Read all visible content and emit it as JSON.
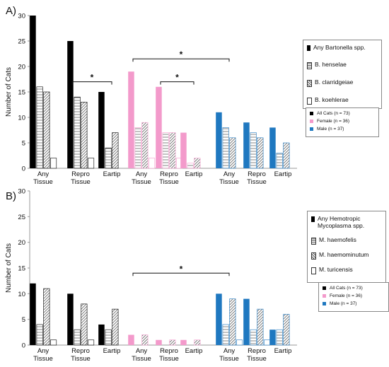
{
  "colors": {
    "all_cats": "#000000",
    "female": "#f39acb",
    "male": "#1f78c0",
    "axis": "#999999"
  },
  "chart_data": [
    {
      "type": "bar",
      "panel_label": "A)",
      "ylabel": "Number of Cats",
      "ylim": [
        0,
        30
      ],
      "yticks": [
        0,
        5,
        10,
        15,
        20,
        25,
        30
      ],
      "groups": [
        {
          "population": "all_cats",
          "categories": [
            "Any\nTissue",
            "Repro\nTissue",
            "Eartip"
          ]
        },
        {
          "population": "female",
          "categories": [
            "Any\nTissue",
            "Repro\nTissue",
            "Eartip"
          ]
        },
        {
          "population": "male",
          "categories": [
            "Any\nTissue",
            "Repro\nTissue",
            "Eartip"
          ]
        }
      ],
      "series": [
        {
          "name": "Any Bartonella spp.",
          "pattern": "solid",
          "values": [
            30,
            25,
            15,
            19,
            16,
            7,
            11,
            9,
            8
          ]
        },
        {
          "name": "B. henselae",
          "pattern": "horizontal",
          "values": [
            16,
            14,
            4,
            8,
            7,
            1,
            8,
            7,
            3
          ]
        },
        {
          "name": "B. clarridgeiae",
          "pattern": "diagonal",
          "values": [
            15,
            13,
            7,
            9,
            7,
            2,
            6,
            6,
            5
          ]
        },
        {
          "name": "B. koehlerae",
          "pattern": "outline",
          "values": [
            2,
            2,
            0,
            2,
            2,
            0,
            0,
            0,
            0
          ]
        }
      ],
      "significance": [
        {
          "from_category": 1,
          "to_category": 2,
          "level": 17,
          "label": "*"
        },
        {
          "from_category": 3,
          "to_category": 6,
          "level": 21.5,
          "label": "*"
        },
        {
          "from_category": 4,
          "to_category": 5,
          "level": 17,
          "label": "*"
        }
      ],
      "legend_species": [
        "Any Bartonella spp.",
        "B. henselae",
        "B. clarridgeiae",
        "B. koehlerae"
      ],
      "legend_population": [
        "All Cats (n = 73)",
        "Female (n = 36)",
        "Male (n = 37)"
      ]
    },
    {
      "type": "bar",
      "panel_label": "B)",
      "ylabel": "Number of Cats",
      "ylim": [
        0,
        30
      ],
      "yticks": [
        0,
        5,
        10,
        15,
        20,
        25,
        30
      ],
      "groups": [
        {
          "population": "all_cats",
          "categories": [
            "Any\nTissue",
            "Repro\nTissue",
            "Eartip"
          ]
        },
        {
          "population": "female",
          "categories": [
            "Any\nTissue",
            "Repro\nTissue",
            "Eartip"
          ]
        },
        {
          "population": "male",
          "categories": [
            "Any\nTissue",
            "Repro\nTissue",
            "Eartip"
          ]
        }
      ],
      "series": [
        {
          "name": "Any Hemotropic Mycoplasma spp.",
          "pattern": "solid",
          "values": [
            12,
            10,
            4,
            2,
            1,
            1,
            10,
            9,
            3
          ]
        },
        {
          "name": "M. haemofelis",
          "pattern": "horizontal",
          "values": [
            4,
            3,
            3,
            0,
            0,
            0,
            4,
            3,
            3
          ]
        },
        {
          "name": "M. haemominutum",
          "pattern": "diagonal",
          "values": [
            11,
            8,
            7,
            2,
            1,
            1,
            9,
            7,
            6
          ]
        },
        {
          "name": "M. turicensis",
          "pattern": "outline",
          "values": [
            1,
            1,
            0,
            0,
            0,
            0,
            1,
            1,
            0
          ]
        }
      ],
      "significance": [
        {
          "from_category": 3,
          "to_category": 6,
          "level": 14,
          "label": "*"
        }
      ],
      "legend_species": [
        "Any Hemotropic\nMycoplasma spp.",
        "M. haemofelis",
        "M. haemominutum",
        "M. turicensis"
      ],
      "legend_population": [
        "All Cats (n = 73)",
        "Female (n = 36)",
        "Male (n = 37)"
      ]
    }
  ]
}
